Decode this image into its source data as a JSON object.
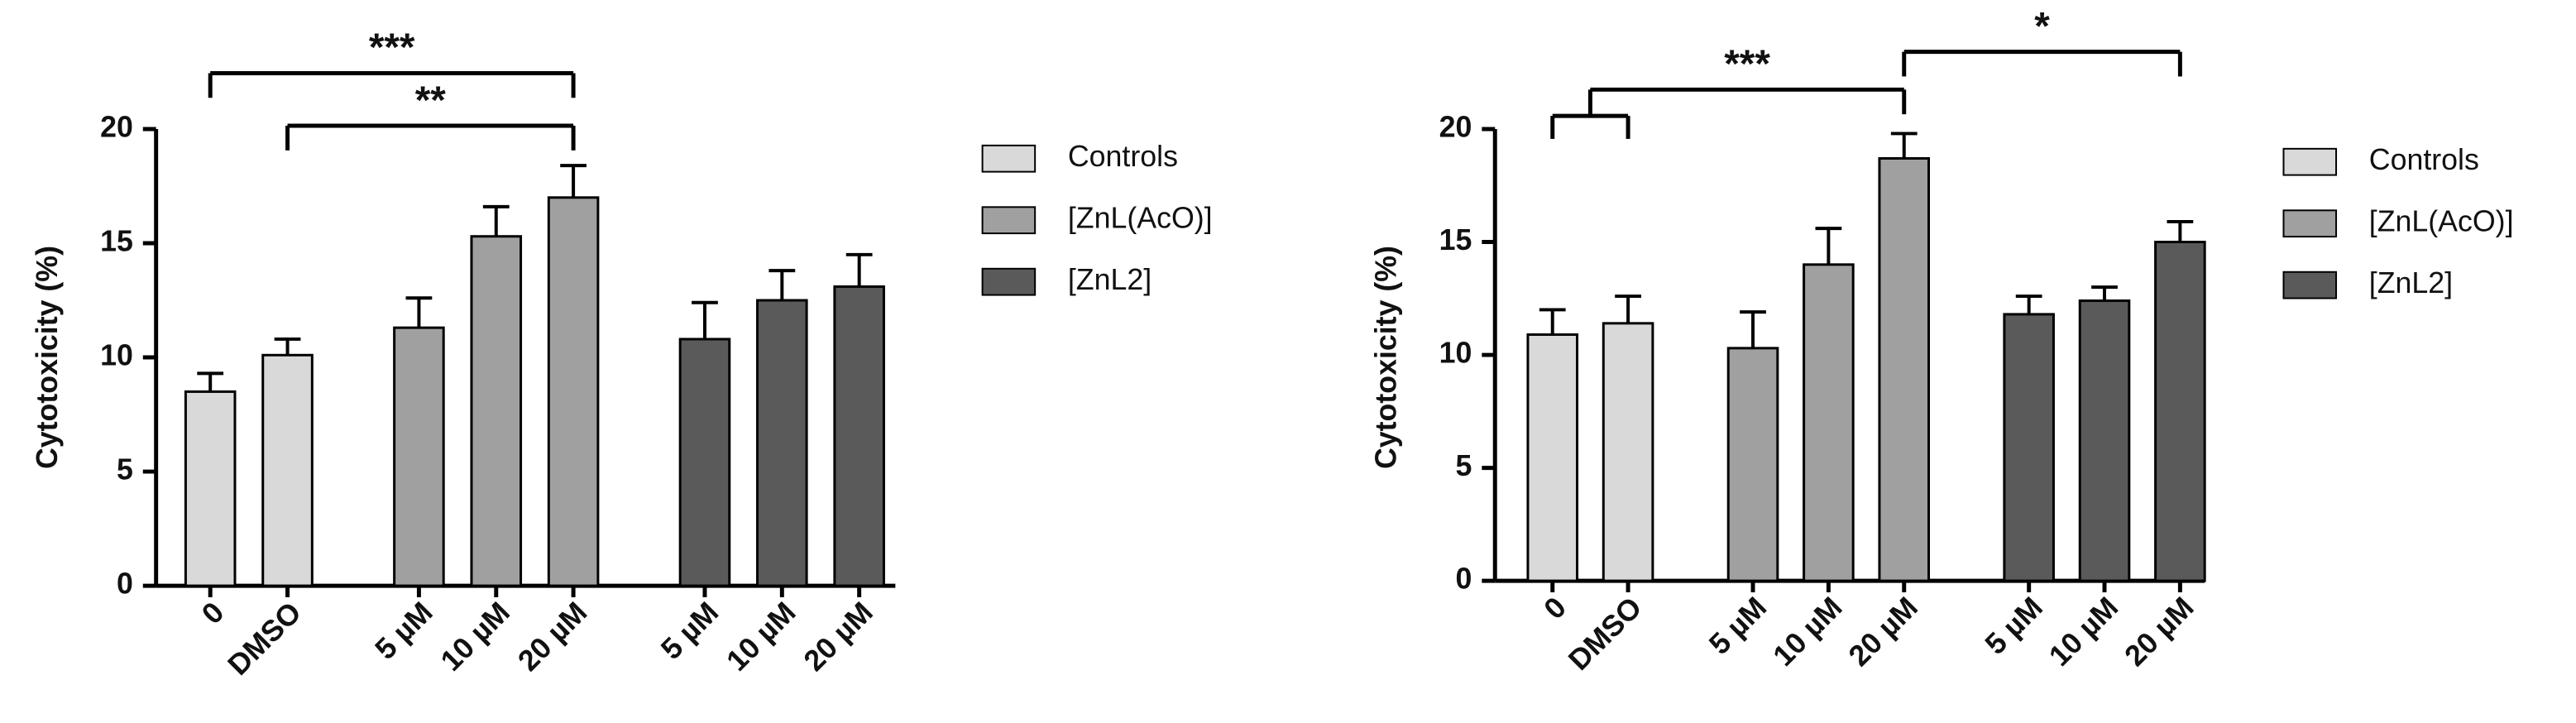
{
  "chart_data": [
    {
      "type": "bar",
      "y_label": "Cytotoxicity (%)",
      "categories": [
        "0",
        "DMSO",
        "5 µM",
        "10 µM",
        "20 µM",
        "5 µM",
        "10 µM",
        "20 µM"
      ],
      "series": [
        {
          "name": "Controls",
          "color": "#d9d9d9",
          "values": [
            8.5,
            10.1,
            null,
            null,
            null,
            null,
            null,
            null
          ],
          "errors": [
            0.8,
            0.7,
            null,
            null,
            null,
            null,
            null,
            null
          ]
        },
        {
          "name": "[ZnL(AcO)]",
          "color": "#a0a0a0",
          "values": [
            null,
            null,
            11.3,
            15.3,
            17.0,
            null,
            null,
            null
          ],
          "errors": [
            null,
            null,
            1.3,
            1.3,
            1.4,
            null,
            null,
            null
          ]
        },
        {
          "name": "[ZnL2]",
          "color": "#5a5a5a",
          "values": [
            null,
            null,
            null,
            null,
            null,
            10.8,
            12.5,
            13.1
          ],
          "errors": [
            null,
            null,
            null,
            null,
            null,
            1.6,
            1.3,
            1.4
          ]
        }
      ],
      "ylim": [
        0,
        20
      ],
      "yticks": [
        0,
        5,
        10,
        15,
        20
      ],
      "annotations": [
        {
          "text": "***",
          "left": [
            0
          ],
          "right": [
            4
          ]
        },
        {
          "text": "**",
          "left": [
            1
          ],
          "right": [
            4
          ]
        }
      ]
    },
    {
      "type": "bar",
      "y_label": "Cytotoxicity (%)",
      "categories": [
        "0",
        "DMSO",
        "5 µM",
        "10 µM",
        "20 µM",
        "5 µM",
        "10 µM",
        "20 µM"
      ],
      "series": [
        {
          "name": "Controls",
          "color": "#d9d9d9",
          "values": [
            10.9,
            11.4,
            null,
            null,
            null,
            null,
            null,
            null
          ],
          "errors": [
            1.1,
            1.2,
            null,
            null,
            null,
            null,
            null,
            null
          ]
        },
        {
          "name": "[ZnL(AcO)]",
          "color": "#a0a0a0",
          "values": [
            null,
            null,
            10.3,
            14.0,
            18.7,
            null,
            null,
            null
          ],
          "errors": [
            null,
            null,
            1.6,
            1.6,
            1.1,
            null,
            null,
            null
          ]
        },
        {
          "name": "[ZnL2]",
          "color": "#5a5a5a",
          "values": [
            null,
            null,
            null,
            null,
            null,
            11.8,
            12.4,
            15.0
          ],
          "errors": [
            null,
            null,
            null,
            null,
            null,
            0.8,
            0.6,
            0.9
          ]
        }
      ],
      "ylim": [
        0,
        20
      ],
      "yticks": [
        0,
        5,
        10,
        15,
        20
      ],
      "annotations": [
        {
          "text": "***",
          "left": [
            0,
            1
          ],
          "right": [
            4
          ]
        },
        {
          "text": "*",
          "left": [
            4
          ],
          "right": [
            7
          ]
        }
      ]
    }
  ]
}
